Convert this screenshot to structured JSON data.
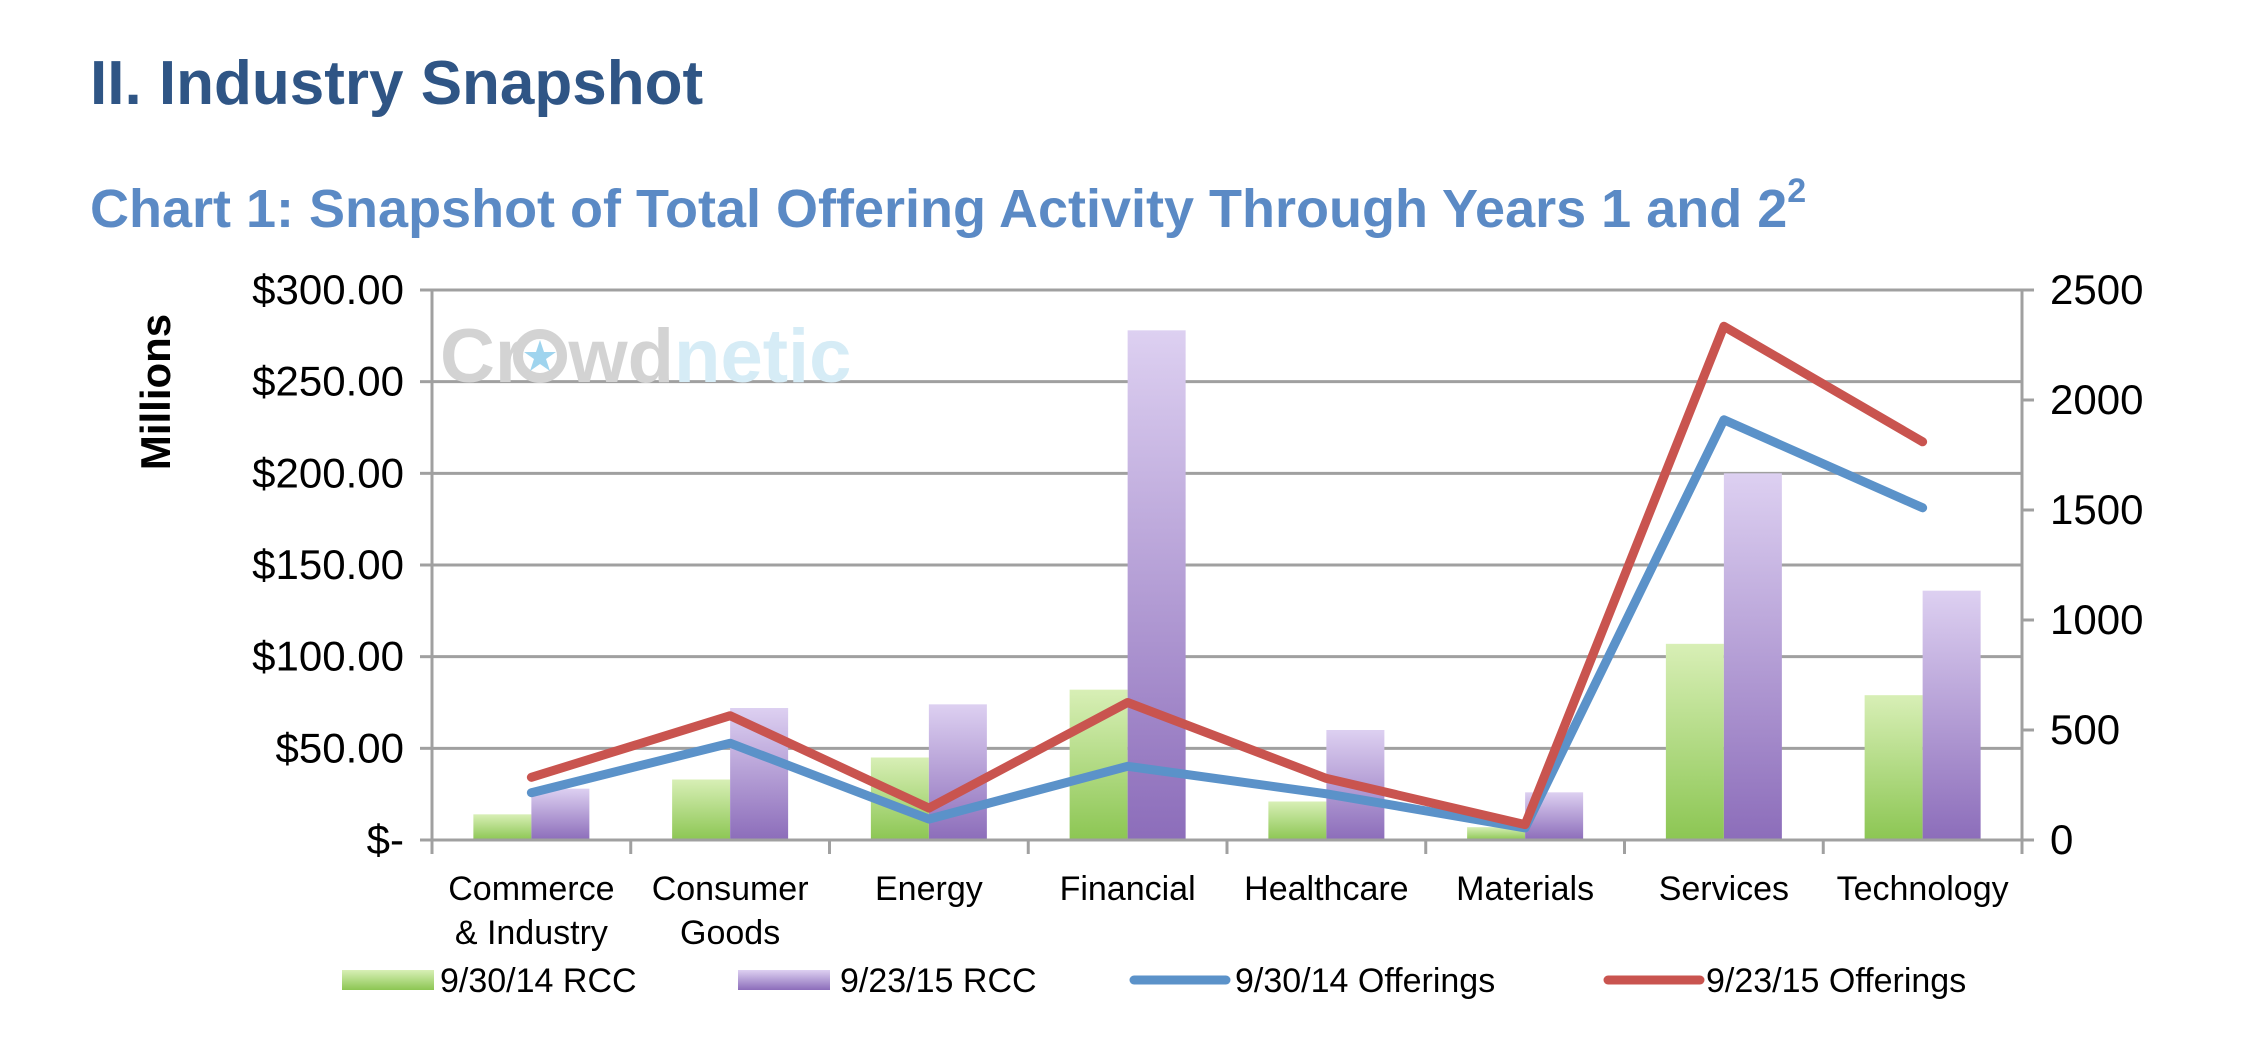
{
  "page": {
    "heading": "II. Industry Snapshot",
    "chart_title": "Chart 1: Snapshot of Total Offering Activity Through Years 1 and 2",
    "chart_title_sup": "2",
    "watermark": {
      "part1": "Cr",
      "part2": "wd",
      "part3": "netic",
      "icon": "crowd-star-icon"
    }
  },
  "colors": {
    "green": "#9fd168",
    "purple": "#9b7fc6",
    "blue": "#5b92c9",
    "red": "#c9544f",
    "grid": "#a0a0a0",
    "heading": "#2f5585",
    "title": "#5b8ac5"
  },
  "chart_data": {
    "type": "bar",
    "categories": [
      [
        "Commerce",
        "& Industry"
      ],
      [
        "Consumer",
        "Goods"
      ],
      [
        "Energy"
      ],
      [
        "Financial"
      ],
      [
        "Healthcare"
      ],
      [
        "Materials"
      ],
      [
        "Services"
      ],
      [
        "Technology"
      ]
    ],
    "ylabel": "Millions",
    "ylim": [
      0,
      300
    ],
    "y_ticks": [
      "$-",
      "$50.00",
      "$100.00",
      "$150.00",
      "$200.00",
      "$250.00",
      "$300.00"
    ],
    "y2lim": [
      0,
      2500
    ],
    "y2_ticks": [
      "0",
      "500",
      "1000",
      "1500",
      "2000",
      "2500"
    ],
    "grid": true,
    "legend_position": "bottom",
    "series": [
      {
        "name": "9/30/14 RCC",
        "type": "bar",
        "axis": "left",
        "values": [
          14,
          33,
          45,
          82,
          21,
          7,
          107,
          79
        ]
      },
      {
        "name": "9/23/15 RCC",
        "type": "bar",
        "axis": "left",
        "values": [
          28,
          72,
          74,
          278,
          60,
          26,
          200,
          136
        ]
      },
      {
        "name": "9/30/14 Offerings",
        "type": "line",
        "axis": "right",
        "values": [
          215,
          440,
          95,
          335,
          210,
          55,
          1910,
          1510
        ]
      },
      {
        "name": "9/23/15 Offerings",
        "type": "line",
        "axis": "right",
        "values": [
          285,
          565,
          145,
          625,
          280,
          70,
          2335,
          1810
        ]
      }
    ]
  }
}
